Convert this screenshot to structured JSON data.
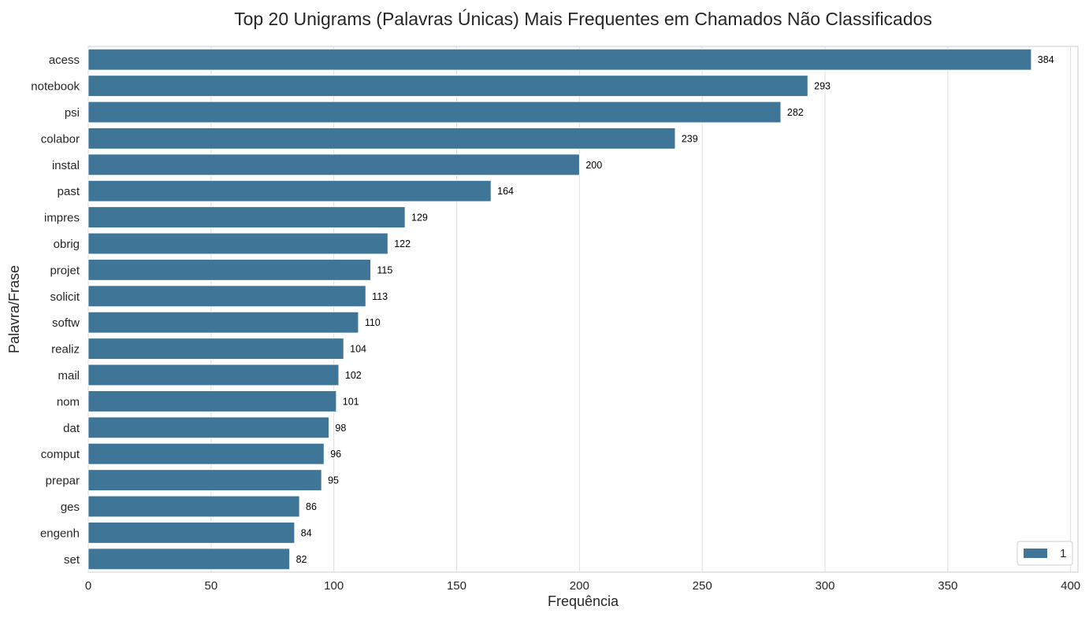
{
  "chart_data": {
    "type": "bar",
    "orientation": "horizontal",
    "title": "Top 20 Unigrams (Palavras Únicas) Mais Frequentes em Chamados Não Classificados",
    "xlabel": "Frequência",
    "ylabel": "Palavra/Frase",
    "xlim": [
      0,
      403
    ],
    "xticks": [
      0,
      50,
      100,
      150,
      200,
      250,
      300,
      350,
      400
    ],
    "grid": true,
    "legend_position": "bottom-right",
    "bar_color": "#3f7698",
    "categories": [
      "acess",
      "notebook",
      "psi",
      "colabor",
      "instal",
      "past",
      "impres",
      "obrig",
      "projet",
      "solicit",
      "softw",
      "realiz",
      "mail",
      "nom",
      "dat",
      "comput",
      "prepar",
      "ges",
      "engenh",
      "set"
    ],
    "series": [
      {
        "name": "1",
        "values": [
          384,
          293,
          282,
          239,
          200,
          164,
          129,
          122,
          115,
          113,
          110,
          104,
          102,
          101,
          98,
          96,
          95,
          86,
          84,
          82
        ]
      }
    ]
  }
}
